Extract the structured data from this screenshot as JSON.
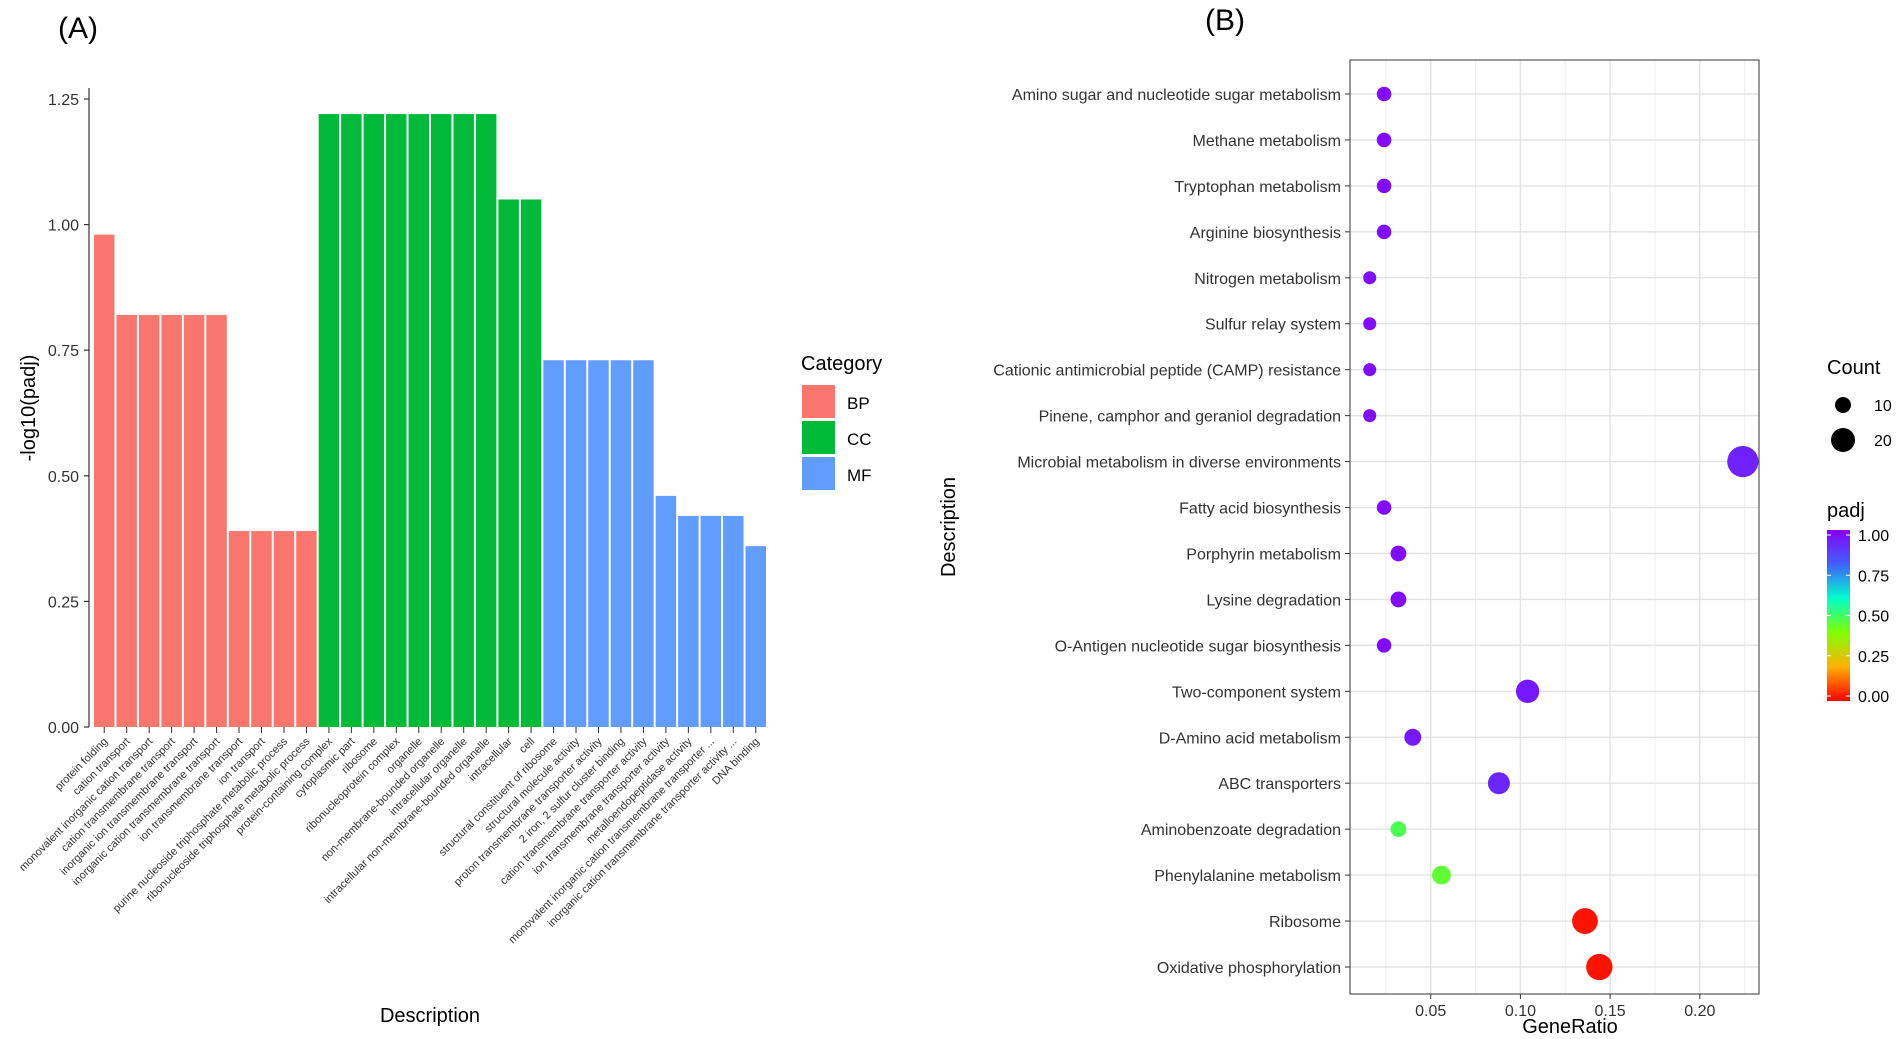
{
  "colors": {
    "BP": "#F8766D",
    "CC": "#00BA38",
    "MF": "#619CFF",
    "grid": "#E8E8E8",
    "axis": "#333333"
  },
  "chart_data": [
    {
      "panel": "(A)",
      "type": "bar",
      "xlabel": "Description",
      "ylabel": "-log10(padj)",
      "ylim": [
        0,
        1.25
      ],
      "yticks": [
        "0.00",
        "0.25",
        "0.50",
        "0.75",
        "1.00",
        "1.25"
      ],
      "legend": {
        "title": "Category",
        "entries": [
          "BP",
          "CC",
          "MF"
        ],
        "position": "right"
      },
      "categories": [
        "protein folding",
        "cation transport",
        "monovalent inorganic cation transport",
        "cation transmembrane transport",
        "inorganic ion transmembrane transport",
        "inorganic cation transmembrane transport",
        "ion transmembrane transport",
        "ion transport",
        "purine nucleoside triphosphate metabolic process",
        "ribonucleoside triphosphate metabolic process",
        "protein-containing complex",
        "cytoplasmic part",
        "ribosome",
        "ribonucleoprotein complex",
        "organelle",
        "non-membrane-bounded organelle",
        "intracellular organelle",
        "intracellular non-membrane-bounded organelle",
        "intracellular",
        "cell",
        "structural constituent of ribosome",
        "structural molecule activity",
        "proton transmembrane transporter activity",
        "2 iron, 2 sulfur cluster binding",
        "cation transmembrane transporter activity",
        "ion transmembrane transporter activity",
        "metalloendopeptidase activity",
        "monovalent inorganic cation transmembrane transporter ...",
        "inorganic cation transmembrane transporter activity ...",
        "DNA binding"
      ],
      "groups": [
        "BP",
        "BP",
        "BP",
        "BP",
        "BP",
        "BP",
        "BP",
        "BP",
        "BP",
        "BP",
        "CC",
        "CC",
        "CC",
        "CC",
        "CC",
        "CC",
        "CC",
        "CC",
        "CC",
        "CC",
        "MF",
        "MF",
        "MF",
        "MF",
        "MF",
        "MF",
        "MF",
        "MF",
        "MF",
        "MF"
      ],
      "values": [
        0.98,
        0.82,
        0.82,
        0.82,
        0.82,
        0.82,
        0.39,
        0.39,
        0.39,
        0.39,
        1.22,
        1.22,
        1.22,
        1.22,
        1.22,
        1.22,
        1.22,
        1.22,
        1.05,
        1.05,
        0.73,
        0.73,
        0.73,
        0.73,
        0.73,
        0.46,
        0.42,
        0.42,
        0.42,
        0.36
      ]
    },
    {
      "panel": "(B)",
      "type": "scatter",
      "xlabel": "GeneRatio",
      "ylabel": "Description",
      "xlim": [
        0.005,
        0.233
      ],
      "xticks": [
        "0.05",
        "0.10",
        "0.15",
        "0.20"
      ],
      "categories": [
        "Amino sugar and nucleotide sugar metabolism",
        "Methane metabolism",
        "Tryptophan metabolism",
        "Arginine biosynthesis",
        "Nitrogen metabolism",
        "Sulfur relay system",
        "Cationic antimicrobial peptide (CAMP) resistance",
        "Pinene, camphor and geraniol degradation",
        "Microbial metabolism in diverse environments",
        "Fatty acid biosynthesis",
        "Porphyrin metabolism",
        "Lysine degradation",
        "O-Antigen nucleotide sugar biosynthesis",
        "Two-component system",
        "D-Amino acid metabolism",
        "ABC transporters",
        "Aminobenzoate degradation",
        "Phenylalanine metabolism",
        "Ribosome",
        "Oxidative phosphorylation"
      ],
      "gene_ratio": [
        0.024,
        0.024,
        0.024,
        0.024,
        0.016,
        0.016,
        0.016,
        0.016,
        0.224,
        0.024,
        0.032,
        0.032,
        0.024,
        0.104,
        0.04,
        0.088,
        0.032,
        0.056,
        0.136,
        0.144
      ],
      "count": [
        3,
        3,
        3,
        3,
        2,
        2,
        2,
        2,
        28,
        3,
        4,
        4,
        3,
        13,
        5,
        11,
        4,
        7,
        17,
        18
      ],
      "padj": [
        0.98,
        0.98,
        0.98,
        0.98,
        0.98,
        0.98,
        0.98,
        0.98,
        0.93,
        0.98,
        0.98,
        0.98,
        0.98,
        0.95,
        0.95,
        0.92,
        0.48,
        0.45,
        0.02,
        0.02
      ],
      "size_legend": {
        "title": "Count",
        "entries": [
          "10",
          "20"
        ]
      },
      "color_legend": {
        "title": "padj",
        "ticks": [
          "0.00",
          "0.25",
          "0.50",
          "0.75",
          "1.00"
        ]
      }
    }
  ]
}
